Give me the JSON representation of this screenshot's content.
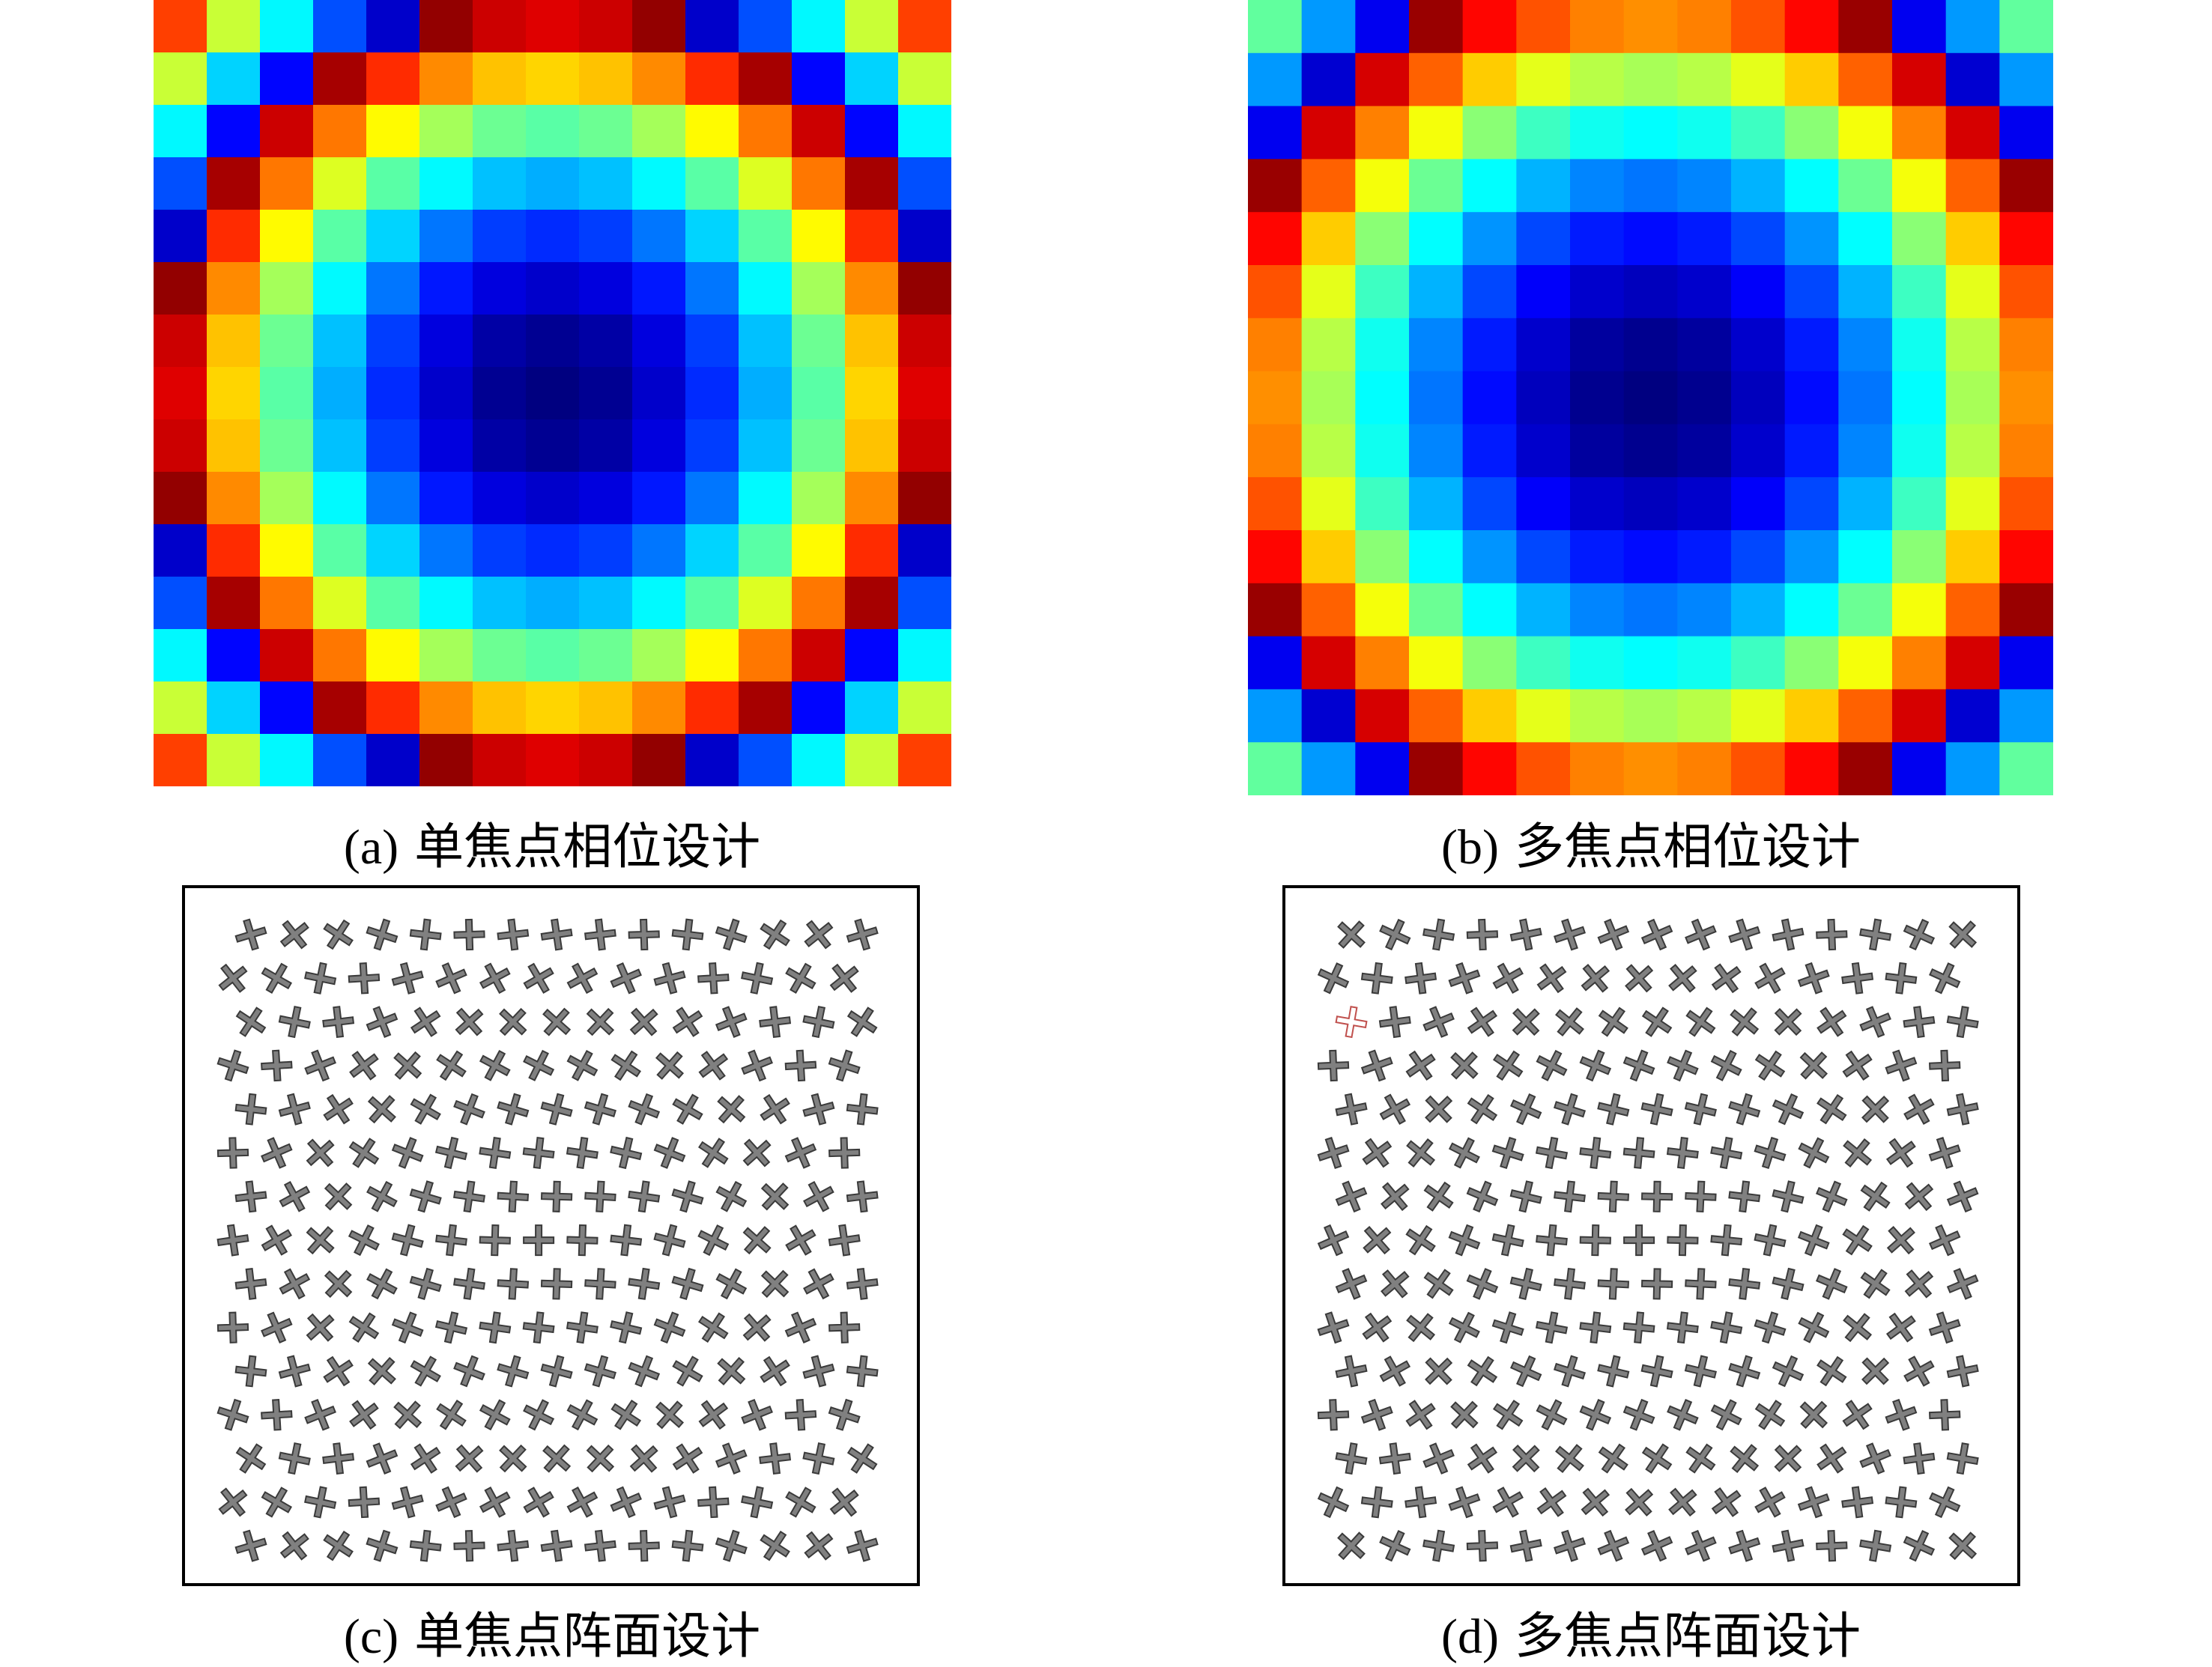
{
  "figure": {
    "panels": [
      {
        "id": "a",
        "label": "(a)",
        "text": "单焦点相位设计"
      },
      {
        "id": "b",
        "label": "(b)",
        "text": "多焦点相位设计"
      },
      {
        "id": "c",
        "label": "(c)",
        "text": "单焦点阵面设计"
      },
      {
        "id": "d",
        "label": "(d)",
        "text": "多焦点阵面设计"
      }
    ],
    "heatmap": {
      "grid": 15,
      "colormap": "jet",
      "colors_dark_to_hot": [
        "#00007f",
        "#0000ff",
        "#007fff",
        "#00ffff",
        "#7fff7f",
        "#ffff00",
        "#ff7f00",
        "#ff0000",
        "#7f0000"
      ]
    },
    "array": {
      "rows": 15,
      "cols": 15,
      "element": "cross-element-icon",
      "element_fill": "#808080",
      "element_stroke": "#3a3a3a",
      "highlight_color": "#c0504d"
    }
  }
}
